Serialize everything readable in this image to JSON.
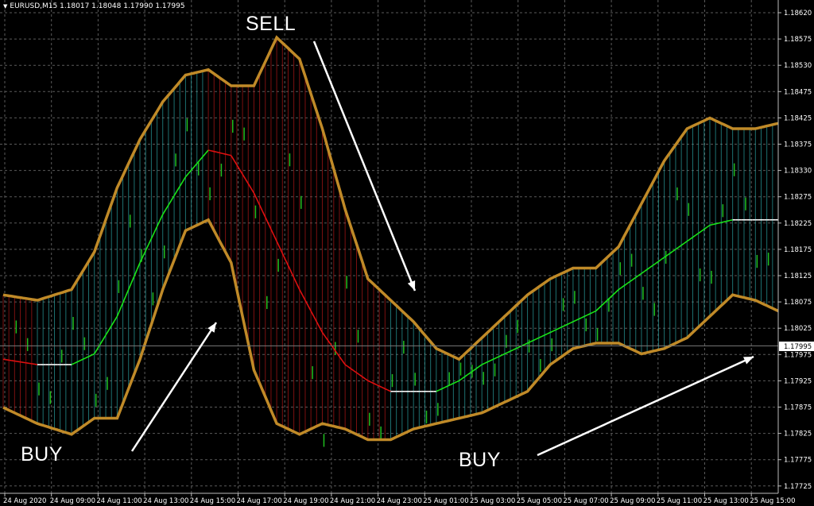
{
  "header": {
    "dropdown_icon": "triangle-down-icon",
    "symbol_info": "EURUSD,M15  1.18017 1.18048 1.17990 1.17995"
  },
  "annotations": {
    "sell": "SELL",
    "buy_left": "BUY",
    "buy_right": "BUY"
  },
  "price_label": "1.17995",
  "colors": {
    "bands": "#c08a28",
    "mid_up": "#19e619",
    "mid_down": "#e01010",
    "mid_neutral": "#ffffff",
    "hist_up": "#2aa0a0",
    "hist_down": "#b01818",
    "grid": "#5a5a5a",
    "arrow": "#ffffff"
  },
  "chart_data": {
    "type": "line",
    "title": "",
    "symbol": "EURUSD",
    "timeframe": "M15",
    "y_ticks": [
      "1.18620",
      "1.18575",
      "1.18530",
      "1.18475",
      "1.18425",
      "1.18375",
      "1.18330",
      "1.18275",
      "1.18225",
      "1.18175",
      "1.18125",
      "1.18075",
      "1.18025",
      "1.17975",
      "1.17925",
      "1.17875",
      "1.17825",
      "1.17775",
      "1.17725"
    ],
    "x_ticks": [
      "24 Aug 2020",
      "24 Aug 09:00",
      "24 Aug 11:00",
      "24 Aug 13:00",
      "24 Aug 15:00",
      "24 Aug 17:00",
      "24 Aug 19:00",
      "24 Aug 21:00",
      "24 Aug 23:00",
      "25 Aug 01:00",
      "25 Aug 03:00",
      "25 Aug 05:00",
      "25 Aug 07:00",
      "25 Aug 09:00",
      "25 Aug 11:00",
      "25 Aug 13:00",
      "25 Aug 15:00"
    ],
    "ylim": [
      1.1772,
      1.1864
    ],
    "grid": true,
    "current_price": 1.17995,
    "x_index_range": [
      0,
      68
    ],
    "series": [
      {
        "x": [
          0,
          3,
          6,
          8,
          10,
          12,
          14,
          16,
          18,
          20,
          22,
          24,
          26,
          28,
          30,
          32,
          34,
          36,
          38,
          40,
          42,
          44,
          46,
          48,
          50,
          52,
          54,
          56,
          58,
          60,
          62,
          64,
          66,
          68
        ],
        "upper": [
          1.1809,
          1.1808,
          1.181,
          1.1817,
          1.1829,
          1.1838,
          1.1845,
          1.185,
          1.1851,
          1.1848,
          1.1848,
          1.1857,
          1.1853,
          1.184,
          1.1825,
          1.1812,
          1.1808,
          1.1804,
          1.1799,
          1.1797,
          1.1801,
          1.1805,
          1.1809,
          1.1812,
          1.1814,
          1.1814,
          1.1818,
          1.1826,
          1.1834,
          1.184,
          1.1842,
          1.184,
          1.184,
          1.1841
        ],
        "middle": [
          1.1797,
          1.1796,
          1.1796,
          1.1798,
          1.1805,
          1.1815,
          1.1824,
          1.1831,
          1.1836,
          1.1835,
          1.1828,
          1.1819,
          1.181,
          1.1802,
          1.1796,
          1.1793,
          1.1791,
          1.1791,
          1.1791,
          1.1793,
          1.1796,
          1.1798,
          1.18,
          1.1802,
          1.1804,
          1.1806,
          1.181,
          1.1813,
          1.1816,
          1.1819,
          1.1822,
          1.1823,
          1.1823,
          1.1823
        ],
        "lower": [
          1.1788,
          1.1785,
          1.1783,
          1.1786,
          1.1786,
          1.1797,
          1.181,
          1.1821,
          1.1823,
          1.1815,
          1.1795,
          1.1785,
          1.1783,
          1.1785,
          1.1784,
          1.1782,
          1.1782,
          1.1784,
          1.1785,
          1.1786,
          1.1787,
          1.1789,
          1.1791,
          1.1796,
          1.1799,
          1.18,
          1.18,
          1.1798,
          1.1799,
          1.1801,
          1.1805,
          1.1809,
          1.1808,
          1.1806
        ]
      }
    ]
  }
}
